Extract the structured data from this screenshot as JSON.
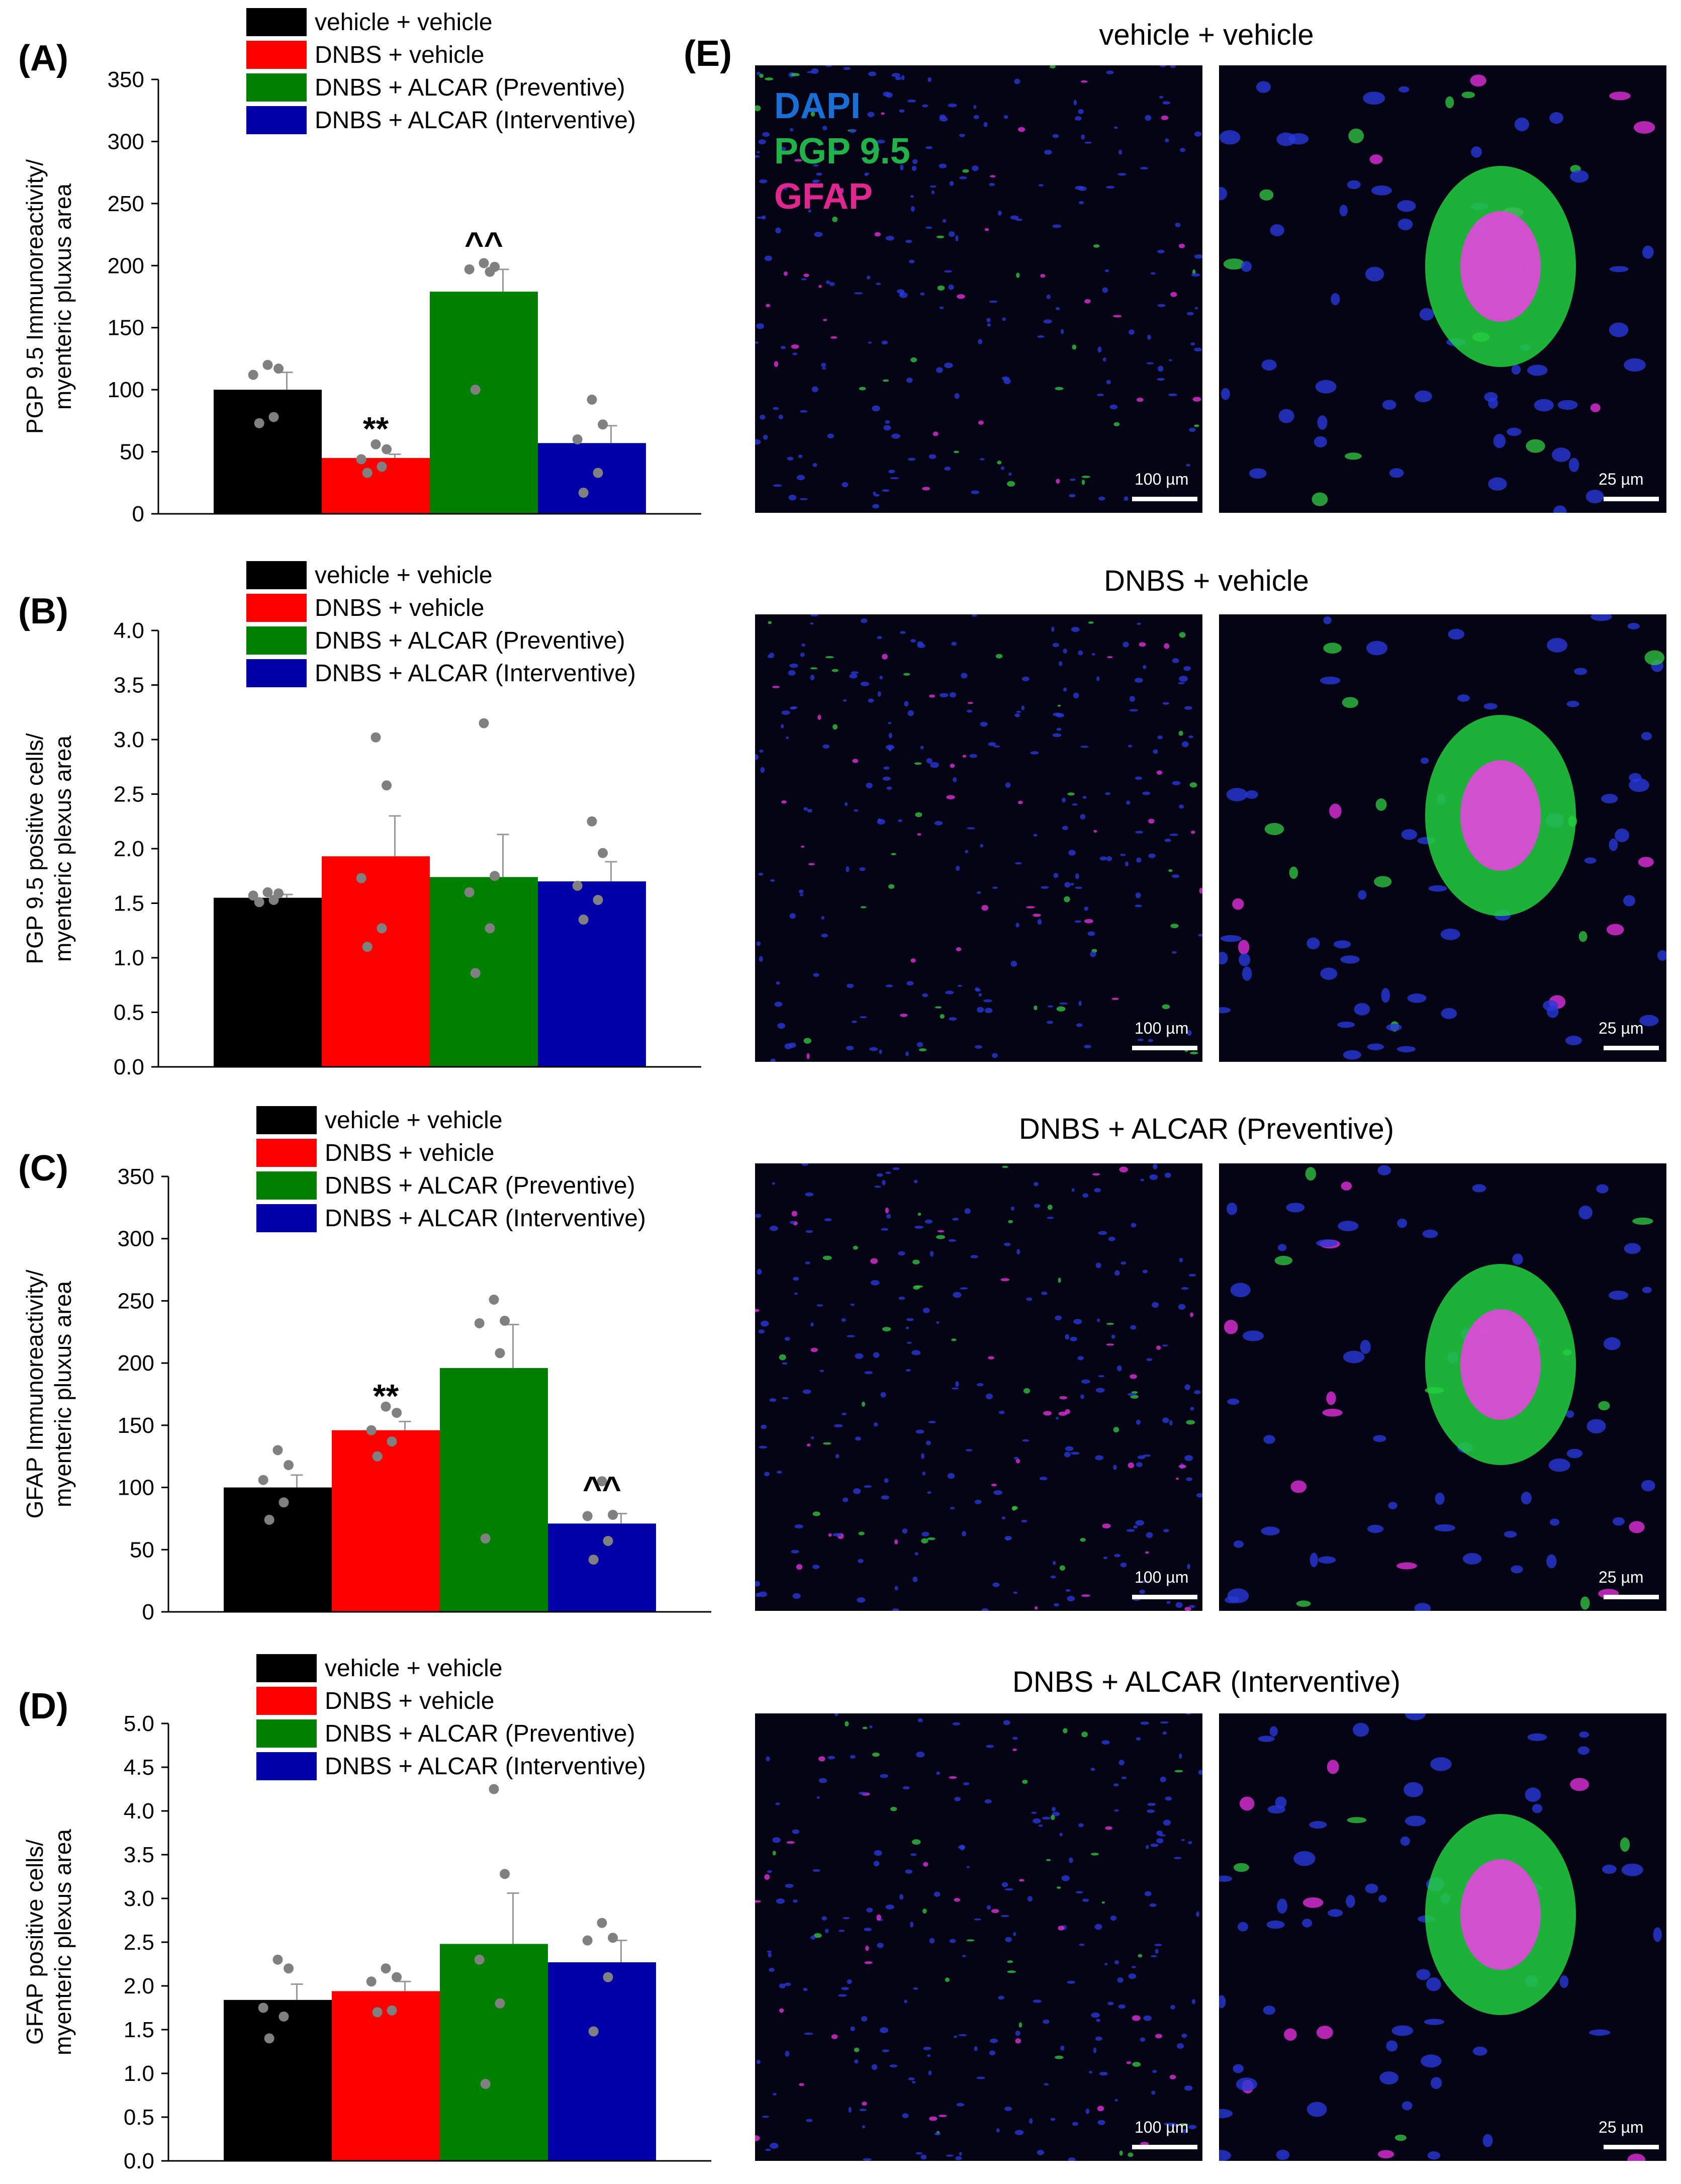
{
  "panel_E": {
    "letter": "(E)",
    "stains": [
      {
        "name": "DAPI",
        "color": "#1a6fd6"
      },
      {
        "name": "PGP 9.5",
        "color": "#1fb34a"
      },
      {
        "name": "GFAP",
        "color": "#e0278f"
      }
    ],
    "rows": [
      {
        "title": "vehicle + vehicle",
        "scale_low": "100 µm",
        "scale_high": "25 µm"
      },
      {
        "title": "DNBS + vehicle",
        "scale_low": "100 µm",
        "scale_high": "25 µm"
      },
      {
        "title": "DNBS + ALCAR (Preventive)",
        "scale_low": "100 µm",
        "scale_high": "25 µm"
      },
      {
        "title": "DNBS + ALCAR (Interventive)",
        "scale_low": "100 µm",
        "scale_high": "25 µm"
      }
    ]
  },
  "chart_data": [
    {
      "type": "bar",
      "panel": "(A)",
      "ylabel": [
        "PGP 9.5 Immunoreactivity/",
        "myenteric pluxus area"
      ],
      "ylim": [
        0,
        350
      ],
      "yticks": [
        "0",
        "50",
        "100",
        "150",
        "200",
        "250",
        "300",
        "350"
      ],
      "categories": [
        "vehicle + vehicle",
        "DNBS + vehicle",
        "DNBS + ALCAR (Preventive)",
        "DNBS + ALCAR (Interventive)"
      ],
      "colors": [
        "#000000",
        "#ff0000",
        "#008000",
        "#0000a8"
      ],
      "values": [
        100,
        45,
        179,
        57
      ],
      "errors": [
        14,
        3,
        18,
        14
      ],
      "points": [
        [
          73,
          78,
          112,
          117,
          120
        ],
        [
          33,
          38,
          44,
          52,
          56
        ],
        [
          100,
          195,
          197,
          199,
          202
        ],
        [
          17,
          33,
          60,
          72,
          92
        ]
      ],
      "annotations": [
        "",
        "**",
        "^^",
        ""
      ]
    },
    {
      "type": "bar",
      "panel": "(B)",
      "ylabel": [
        "PGP 9.5 positive cells/",
        "myenteric plexus area"
      ],
      "ylim": [
        0,
        4
      ],
      "yticks": [
        "0.0",
        "0.5",
        "1.0",
        "1.5",
        "2.0",
        "2.5",
        "3.0",
        "3.5",
        "4.0"
      ],
      "categories": [
        "vehicle + vehicle",
        "DNBS + vehicle",
        "DNBS + ALCAR (Preventive)",
        "DNBS + ALCAR (Interventive)"
      ],
      "colors": [
        "#000000",
        "#ff0000",
        "#008000",
        "#0000a8"
      ],
      "values": [
        1.55,
        1.93,
        1.74,
        1.7
      ],
      "errors": [
        0.03,
        0.37,
        0.39,
        0.18
      ],
      "points": [
        [
          1.51,
          1.53,
          1.57,
          1.59,
          1.6
        ],
        [
          1.1,
          1.27,
          1.73,
          2.58,
          3.02
        ],
        [
          0.86,
          1.27,
          1.6,
          1.75,
          3.15
        ],
        [
          1.35,
          1.53,
          1.66,
          1.96,
          2.25
        ]
      ],
      "annotations": [
        "",
        "",
        "",
        ""
      ]
    },
    {
      "type": "bar",
      "panel": "(C)",
      "ylabel": [
        "GFAP Immunoreactivity/",
        "myenteric pluxus area"
      ],
      "ylim": [
        0,
        350
      ],
      "yticks": [
        "0",
        "50",
        "100",
        "150",
        "200",
        "250",
        "300",
        "350"
      ],
      "categories": [
        "vehicle + vehicle",
        "DNBS + vehicle",
        "DNBS + ALCAR (Preventive)",
        "DNBS + ALCAR (Interventive)"
      ],
      "colors": [
        "#000000",
        "#ff0000",
        "#008000",
        "#0000a8"
      ],
      "values": [
        100,
        146,
        196,
        71
      ],
      "errors": [
        10,
        7,
        35,
        8
      ],
      "points": [
        [
          74,
          88,
          106,
          118,
          130
        ],
        [
          125,
          137,
          146,
          160,
          165
        ],
        [
          59,
          208,
          232,
          234,
          251
        ],
        [
          42,
          57,
          77,
          78,
          105
        ]
      ],
      "annotations": [
        "",
        "**",
        "",
        "^^"
      ]
    },
    {
      "type": "bar",
      "panel": "(D)",
      "ylabel": [
        "GFAP positive cells/",
        "myenteric plexus area"
      ],
      "ylim": [
        0,
        5
      ],
      "yticks": [
        "0.0",
        "0.5",
        "1.0",
        "1.5",
        "2.0",
        "2.5",
        "3.0",
        "3.5",
        "4.0",
        "4.5",
        "5.0"
      ],
      "categories": [
        "vehicle + vehicle",
        "DNBS + vehicle",
        "DNBS + ALCAR (Preventive)",
        "DNBS + ALCAR (Interventive)"
      ],
      "colors": [
        "#000000",
        "#ff0000",
        "#008000",
        "#0000a8"
      ],
      "values": [
        1.84,
        1.94,
        2.48,
        2.27
      ],
      "errors": [
        0.18,
        0.11,
        0.58,
        0.25
      ],
      "points": [
        [
          1.4,
          1.65,
          1.75,
          2.2,
          2.3
        ],
        [
          1.7,
          1.72,
          2.05,
          2.1,
          2.2
        ],
        [
          0.88,
          1.8,
          2.3,
          3.28,
          4.25
        ],
        [
          1.48,
          2.1,
          2.52,
          2.55,
          2.72
        ]
      ],
      "annotations": [
        "",
        "",
        "",
        ""
      ]
    }
  ]
}
